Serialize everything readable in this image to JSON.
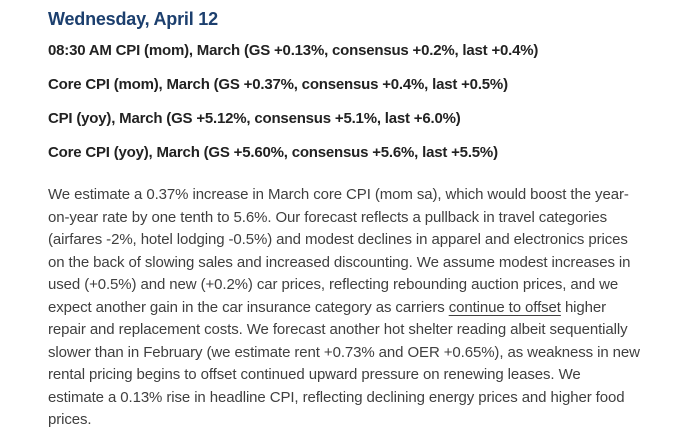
{
  "colors": {
    "heading_navy": "#1c3f6e",
    "release_line_text": "#222222",
    "body_text": "#3f3f3f",
    "background": "#ffffff"
  },
  "header": {
    "date_title": "Wednesday, April 12"
  },
  "release_lines": [
    "08:30 AM CPI (mom), March (GS +0.13%, consensus +0.2%, last +0.4%)",
    "Core CPI (mom), March (GS +0.37%, consensus +0.4%, last +0.5%)",
    "CPI (yoy), March (GS +5.12%, consensus +5.1%, last +6.0%)",
    "Core CPI (yoy), March (GS +5.60%, consensus +5.6%, last +5.5%)"
  ],
  "commentary": {
    "before_underline": "We estimate a 0.37% increase in March core CPI (mom sa), which would boost the year-on-year rate by one tenth to 5.6%. Our forecast reflects a pullback in travel categories (airfares -2%, hotel lodging -0.5%) and modest declines in apparel and electronics prices on the back of slowing sales and increased discounting. We assume modest increases in used (+0.5%) and new (+0.2%) car prices, reflecting rebounding auction prices, and we expect another gain in the car insurance category as carriers ",
    "underlined": "continue to offset",
    "after_underline": " higher repair and replacement costs. We forecast another hot shelter reading albeit sequentially slower than in February (we estimate rent +0.73% and OER +0.65%), as weakness in new rental pricing begins to offset continued upward pressure on renewing leases. We estimate a 0.13% rise in headline CPI, reflecting declining energy prices and higher food prices."
  }
}
